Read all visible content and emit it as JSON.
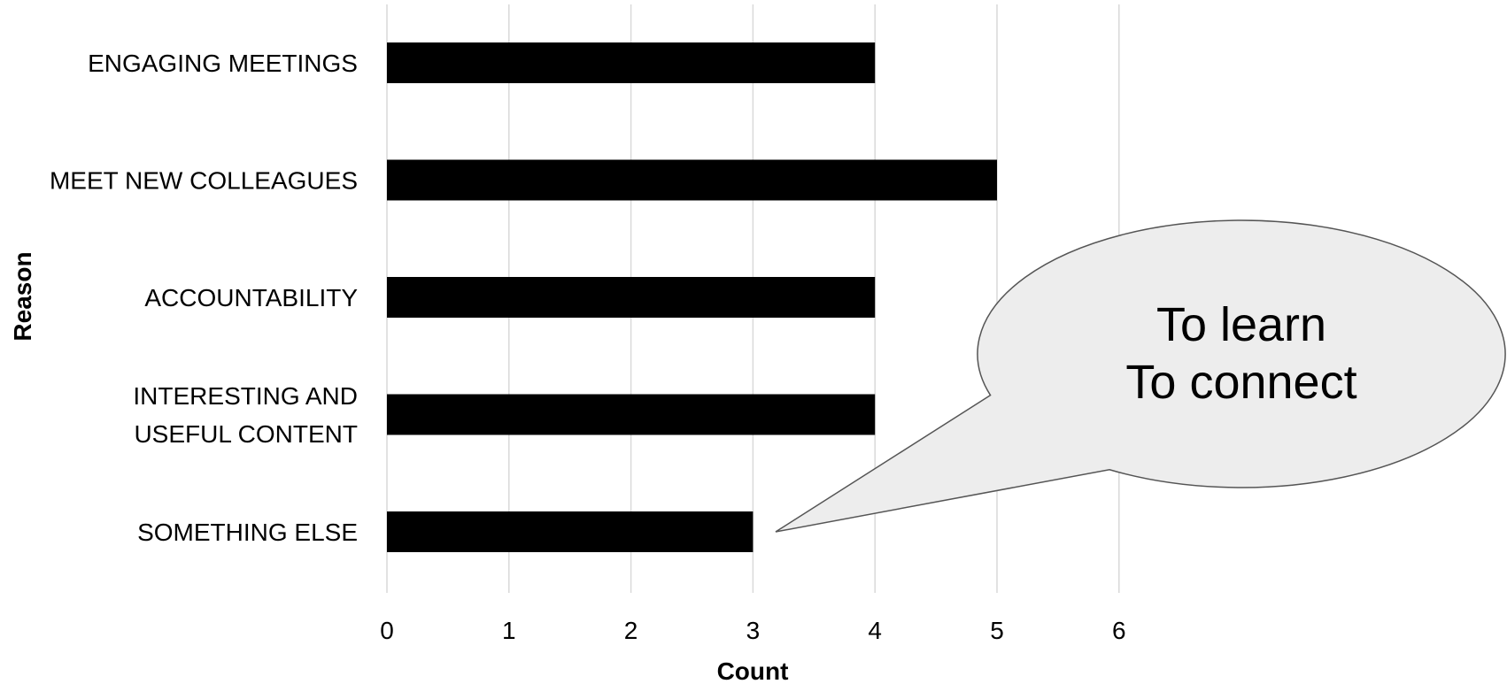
{
  "chart_data": {
    "type": "bar",
    "orientation": "horizontal",
    "categories": [
      "ENGAGING MEETINGS",
      "MEET NEW COLLEAGUES",
      "ACCOUNTABILITY",
      "INTERESTING AND USEFUL CONTENT",
      "SOMETHING ELSE"
    ],
    "category_lines": [
      [
        "ENGAGING MEETINGS"
      ],
      [
        "MEET NEW COLLEAGUES"
      ],
      [
        "ACCOUNTABILITY"
      ],
      [
        "INTERESTING AND",
        "USEFUL CONTENT"
      ],
      [
        "SOMETHING ELSE"
      ]
    ],
    "values": [
      4,
      5,
      4,
      4,
      3
    ],
    "xlabel": "Count",
    "ylabel": "Reason",
    "xlim": [
      0,
      6
    ],
    "xticks": [
      "0",
      "1",
      "2",
      "3",
      "4",
      "5",
      "6"
    ],
    "grid": "vertical",
    "bar_color": "#000000",
    "annotation": {
      "lines": [
        "To learn",
        "To connect"
      ],
      "points_to": "SOMETHING ELSE",
      "fill": "#ededed",
      "stroke": "#555555"
    }
  }
}
